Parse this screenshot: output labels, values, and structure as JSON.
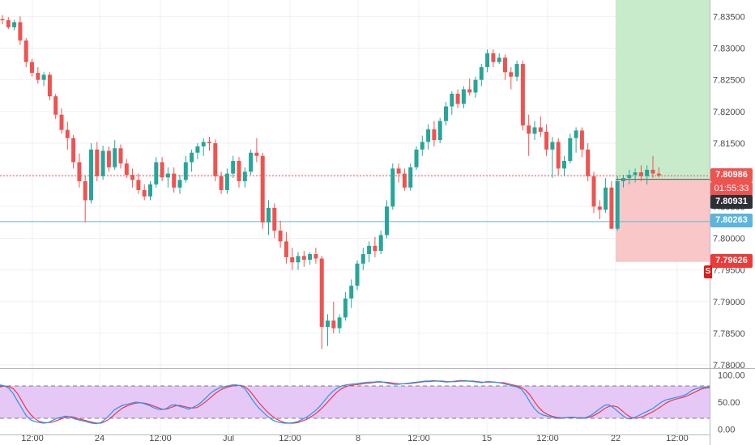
{
  "chart_data": {
    "type": "candlestick",
    "price_axis": {
      "ticks": [
        "7.83500",
        "7.83000",
        "7.82500",
        "7.82000",
        "7.81500",
        "7.81000",
        "7.80500",
        "7.80000",
        "7.79500",
        "7.79000",
        "7.78500",
        "7.78000"
      ],
      "tick_values": [
        7.835,
        7.83,
        7.825,
        7.82,
        7.815,
        7.81,
        7.805,
        7.8,
        7.795,
        7.79,
        7.785,
        7.78
      ],
      "range": [
        7.7795,
        7.8376
      ]
    },
    "time_axis": {
      "labels": [
        "12:00",
        "24",
        "12:00",
        "Jul",
        "12:00",
        "8",
        "12:00",
        "15",
        "12:00",
        "22",
        "12:00"
      ]
    },
    "price_labels": {
      "last": "7.80986",
      "countdown": "01:55:33",
      "level_dark": "7.80931",
      "level_blue": "7.80263",
      "stop": "7.79626"
    },
    "levels": {
      "last": 7.80986,
      "dark": 7.80931,
      "blue": 7.80263,
      "stop": 7.79626,
      "entry": 7.8093
    },
    "position_tool": {
      "target_zone_color": "#c8ebcb",
      "stop_zone_color": "#f9c7c7"
    },
    "oscillator": {
      "type": "stochastic",
      "ticks": [
        "100.00",
        "50.00",
        "0.00"
      ],
      "tick_values": [
        100,
        50,
        0
      ],
      "upper_band": 80,
      "lower_band": 20,
      "band_color": "#e6c8f7"
    },
    "colors": {
      "up": "#26a69a",
      "down": "#ef5350",
      "k_line": "#2196f3",
      "d_line": "#f23645",
      "blue_level": "#5bb5de",
      "dark_label": "#2e3038"
    },
    "candles": [
      [
        7.8346,
        7.8352,
        7.8338,
        7.8344
      ],
      [
        7.8344,
        7.8349,
        7.833,
        7.8333
      ],
      [
        7.8333,
        7.8345,
        7.8328,
        7.8341
      ],
      [
        7.8341,
        7.835,
        7.8305,
        7.8312
      ],
      [
        7.8312,
        7.8316,
        7.827,
        7.8278
      ],
      [
        7.8278,
        7.8283,
        7.8255,
        7.8261
      ],
      [
        7.8261,
        7.827,
        7.8244,
        7.825
      ],
      [
        7.825,
        7.8262,
        7.824,
        7.8258
      ],
      [
        7.8258,
        7.8262,
        7.8218,
        7.8224
      ],
      [
        7.8224,
        7.8228,
        7.8188,
        7.8195
      ],
      [
        7.8195,
        7.8205,
        7.8165,
        7.8171
      ],
      [
        7.8171,
        7.8184,
        7.814,
        7.8158
      ],
      [
        7.8158,
        7.8163,
        7.811,
        7.812
      ],
      [
        7.812,
        7.8134,
        7.808,
        7.809
      ],
      [
        7.809,
        7.8098,
        7.8025,
        7.806
      ],
      [
        7.806,
        7.815,
        7.8055,
        7.814
      ],
      [
        7.814,
        7.8152,
        7.809,
        7.8098
      ],
      [
        7.8098,
        7.8146,
        7.8092,
        7.8138
      ],
      [
        7.8138,
        7.8145,
        7.8105,
        7.8112
      ],
      [
        7.8112,
        7.8155,
        7.8108,
        7.8142
      ],
      [
        7.8142,
        7.8148,
        7.811,
        7.8118
      ],
      [
        7.8118,
        7.8125,
        7.8095,
        7.81
      ],
      [
        7.81,
        7.811,
        7.808,
        7.8092
      ],
      [
        7.8092,
        7.8102,
        7.807,
        7.8076
      ],
      [
        7.8076,
        7.8085,
        7.806,
        7.8066
      ],
      [
        7.8066,
        7.809,
        7.806,
        7.8085
      ],
      [
        7.8085,
        7.8128,
        7.808,
        7.812
      ],
      [
        7.812,
        7.8128,
        7.809,
        7.8096
      ],
      [
        7.8096,
        7.8112,
        7.808,
        7.8102
      ],
      [
        7.8102,
        7.8112,
        7.8072,
        7.808
      ],
      [
        7.808,
        7.81,
        7.807,
        7.8092
      ],
      [
        7.8092,
        7.813,
        7.8088,
        7.812
      ],
      [
        7.812,
        7.814,
        7.8105,
        7.8135
      ],
      [
        7.8135,
        7.815,
        7.8125,
        7.8145
      ],
      [
        7.8145,
        7.8158,
        7.813,
        7.8152
      ],
      [
        7.8152,
        7.816,
        7.8138,
        7.815
      ],
      [
        7.815,
        7.8156,
        7.809,
        7.8098
      ],
      [
        7.8098,
        7.8105,
        7.807,
        7.8076
      ],
      [
        7.8076,
        7.811,
        7.807,
        7.8102
      ],
      [
        7.8102,
        7.813,
        7.8095,
        7.8122
      ],
      [
        7.8122,
        7.8128,
        7.808,
        7.809
      ],
      [
        7.809,
        7.8112,
        7.808,
        7.8105
      ],
      [
        7.8105,
        7.814,
        7.81,
        7.8135
      ],
      [
        7.8135,
        7.8158,
        7.812,
        7.813
      ],
      [
        7.813,
        7.8135,
        7.8015,
        7.8025
      ],
      [
        7.8025,
        7.806,
        7.8005,
        7.8048
      ],
      [
        7.8048,
        7.8055,
        7.8,
        7.8012
      ],
      [
        7.8012,
        7.8028,
        7.7985,
        7.7995
      ],
      [
        7.7995,
        7.801,
        7.796,
        7.797
      ],
      [
        7.797,
        7.7985,
        7.795,
        7.7962
      ],
      [
        7.7962,
        7.7978,
        7.795,
        7.7972
      ],
      [
        7.7972,
        7.798,
        7.7955,
        7.7966
      ],
      [
        7.7966,
        7.7978,
        7.7958,
        7.7975
      ],
      [
        7.7975,
        7.7985,
        7.796,
        7.7968
      ],
      [
        7.7968,
        7.7972,
        7.7825,
        7.786
      ],
      [
        7.786,
        7.788,
        7.783,
        7.787
      ],
      [
        7.787,
        7.79,
        7.785,
        7.7858
      ],
      [
        7.7858,
        7.788,
        7.785,
        7.7875
      ],
      [
        7.7875,
        7.7915,
        7.787,
        7.7905
      ],
      [
        7.7905,
        7.7935,
        7.789,
        7.7925
      ],
      [
        7.7925,
        7.7965,
        7.7918,
        7.796
      ],
      [
        7.796,
        7.7985,
        7.795,
        7.7975
      ],
      [
        7.7975,
        7.7995,
        7.7962,
        7.7988
      ],
      [
        7.7988,
        7.8002,
        7.797,
        7.798
      ],
      [
        7.798,
        7.8012,
        7.7975,
        7.8005
      ],
      [
        7.8005,
        7.806,
        7.8,
        7.805
      ],
      [
        7.805,
        7.8118,
        7.8045,
        7.811
      ],
      [
        7.811,
        7.8118,
        7.8088,
        7.8102
      ],
      [
        7.8102,
        7.811,
        7.8075,
        7.808
      ],
      [
        7.808,
        7.8118,
        7.8075,
        7.8112
      ],
      [
        7.8112,
        7.8145,
        7.8108,
        7.814
      ],
      [
        7.814,
        7.8162,
        7.813,
        7.8152
      ],
      [
        7.8152,
        7.818,
        7.814,
        7.8172
      ],
      [
        7.8172,
        7.8185,
        7.8145,
        7.8155
      ],
      [
        7.8155,
        7.819,
        7.815,
        7.8185
      ],
      [
        7.8185,
        7.8215,
        7.8178,
        7.8208
      ],
      [
        7.8208,
        7.8232,
        7.8195,
        7.8228
      ],
      [
        7.8228,
        7.8235,
        7.8205,
        7.8212
      ],
      [
        7.8212,
        7.824,
        7.8205,
        7.8235
      ],
      [
        7.8235,
        7.8252,
        7.8225,
        7.823
      ],
      [
        7.823,
        7.8255,
        7.8222,
        7.825
      ],
      [
        7.825,
        7.8275,
        7.824,
        7.827
      ],
      [
        7.827,
        7.8298,
        7.8262,
        7.8292
      ],
      [
        7.8292,
        7.8298,
        7.827,
        7.8278
      ],
      [
        7.8278,
        7.8292,
        7.8275,
        7.8285
      ],
      [
        7.8285,
        7.829,
        7.825,
        7.8262
      ],
      [
        7.8262,
        7.827,
        7.8235,
        7.8255
      ],
      [
        7.8255,
        7.828,
        7.8248,
        7.8275
      ],
      [
        7.8275,
        7.828,
        7.817,
        7.8178
      ],
      [
        7.8178,
        7.8195,
        7.813,
        7.8165
      ],
      [
        7.8165,
        7.8185,
        7.8155,
        7.8175
      ],
      [
        7.8175,
        7.8192,
        7.816,
        7.8168
      ],
      [
        7.8168,
        7.818,
        7.813,
        7.814
      ],
      [
        7.814,
        7.816,
        7.8095,
        7.8152
      ],
      [
        7.8152,
        7.8158,
        7.81,
        7.811
      ],
      [
        7.811,
        7.813,
        7.8098,
        7.8122
      ],
      [
        7.8122,
        7.8165,
        7.8118,
        7.8158
      ],
      [
        7.8158,
        7.8175,
        7.8135,
        7.817
      ],
      [
        7.817,
        7.8175,
        7.8128,
        7.814
      ],
      [
        7.814,
        7.815,
        7.809,
        7.8098
      ],
      [
        7.8098,
        7.8105,
        7.804,
        7.805
      ],
      [
        7.805,
        7.806,
        7.803,
        7.8045
      ],
      [
        7.8045,
        7.8095,
        7.804,
        7.808
      ],
      [
        7.808,
        7.809,
        7.8015,
        7.8015
      ],
      [
        7.8015,
        7.8098,
        7.8012,
        7.809
      ],
      [
        7.809,
        7.81,
        7.808,
        7.8095
      ],
      [
        7.8095,
        7.8108,
        7.8085,
        7.81
      ],
      [
        7.81,
        7.811,
        7.8088,
        7.8104
      ],
      [
        7.8104,
        7.8115,
        7.809,
        7.8098
      ],
      [
        7.8098,
        7.8115,
        7.8085,
        7.8108
      ],
      [
        7.8108,
        7.813,
        7.8095,
        7.8102
      ],
      [
        7.8102,
        7.8112,
        7.8096,
        7.8099
      ]
    ],
    "k": [
      82,
      80,
      76,
      66,
      52,
      38,
      25,
      17,
      14,
      12,
      11,
      12,
      16,
      20,
      22,
      24,
      22,
      19,
      17,
      15,
      13,
      11,
      10,
      12,
      18,
      26,
      35,
      40,
      44,
      46,
      48,
      50,
      49,
      47,
      44,
      40,
      37,
      36,
      38,
      44,
      45,
      42,
      40,
      37,
      40,
      44,
      50,
      58,
      66,
      72,
      76,
      78,
      80,
      82,
      82,
      80,
      74,
      62,
      50,
      40,
      32,
      24,
      18,
      14,
      12,
      11,
      11,
      12,
      14,
      18,
      22,
      28,
      34,
      42,
      52,
      62,
      70,
      76,
      80,
      82,
      83,
      84,
      85,
      86,
      87,
      87,
      88,
      88,
      86,
      84,
      83,
      83,
      84,
      85,
      86,
      87,
      88,
      89,
      89,
      90,
      89,
      88,
      87,
      88,
      89,
      90,
      90,
      89,
      88,
      87,
      86,
      88,
      88,
      87,
      86,
      84,
      82,
      80,
      78,
      74,
      64,
      50,
      38,
      30,
      26,
      24,
      22,
      20,
      20,
      21,
      22,
      22,
      20,
      20,
      22,
      26,
      32,
      38,
      44,
      45,
      40,
      33,
      26,
      20,
      19,
      22,
      26,
      30,
      34,
      38,
      44,
      50,
      54,
      56,
      58,
      60,
      62,
      66,
      72,
      75,
      77,
      78,
      78
    ],
    "d": [
      78,
      80,
      79,
      75,
      66,
      52,
      38,
      27,
      19,
      14,
      12,
      12,
      13,
      16,
      19,
      22,
      23,
      22,
      19,
      17,
      15,
      13,
      11,
      11,
      14,
      19,
      26,
      33,
      39,
      43,
      46,
      48,
      49,
      48,
      46,
      43,
      40,
      37,
      37,
      40,
      43,
      44,
      42,
      40,
      39,
      40,
      45,
      51,
      58,
      65,
      71,
      75,
      78,
      80,
      81,
      81,
      78,
      71,
      61,
      50,
      41,
      32,
      25,
      19,
      15,
      12,
      11,
      11,
      12,
      15,
      18,
      23,
      28,
      35,
      43,
      52,
      61,
      69,
      75,
      79,
      81,
      82,
      83,
      84,
      85,
      86,
      87,
      87,
      87,
      86,
      85,
      84,
      84,
      84,
      85,
      86,
      87,
      88,
      88,
      89,
      89,
      89,
      88,
      88,
      88,
      89,
      89,
      89,
      89,
      88,
      87,
      87,
      87,
      87,
      86,
      86,
      84,
      82,
      80,
      77,
      72,
      63,
      51,
      40,
      32,
      27,
      24,
      22,
      21,
      21,
      21,
      21,
      21,
      21,
      21,
      23,
      27,
      32,
      38,
      42,
      43,
      41,
      34,
      27,
      22,
      20,
      21,
      24,
      28,
      32,
      37,
      42,
      48,
      52,
      55,
      57,
      59,
      62,
      66,
      70,
      74,
      76,
      77
    ]
  }
}
